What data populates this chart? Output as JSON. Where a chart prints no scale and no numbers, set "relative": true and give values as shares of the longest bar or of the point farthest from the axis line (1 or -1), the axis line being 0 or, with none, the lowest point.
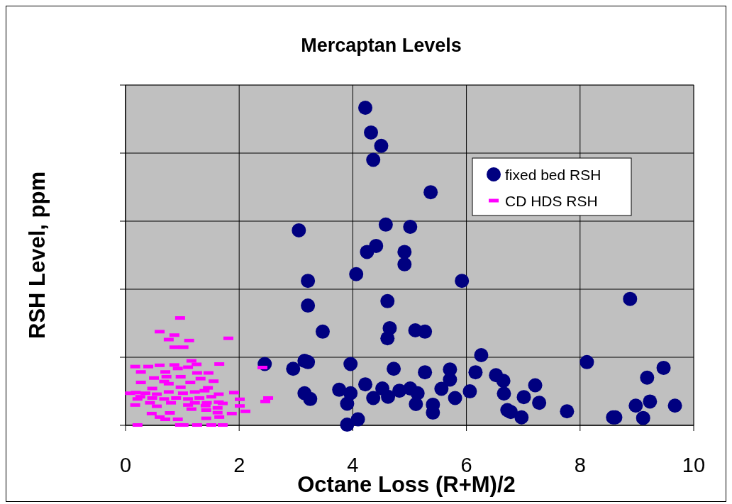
{
  "chart_data": {
    "type": "scatter",
    "title": "Mercaptan Levels",
    "xlabel": "Octane Loss (R+M)/2",
    "ylabel": "RSH Level, ppm",
    "relative": true,
    "xlim": [
      0,
      10
    ],
    "xticks": [
      0,
      2,
      4,
      6,
      8,
      10
    ],
    "grid": true,
    "legend": "top right",
    "series": [
      {
        "name": "fixed bed RSH",
        "color": "#000080",
        "marker": "circle",
        "x": [
          4.22,
          4.32,
          4.5,
          4.36,
          5.37,
          3.05,
          4.58,
          5.01,
          4.25,
          4.41,
          4.91,
          4.91,
          4.06,
          3.21,
          5.92,
          4.61,
          3.21,
          3.47,
          4.65,
          4.61,
          5.1,
          5.27,
          6.26,
          2.45,
          2.95,
          3.15,
          3.21,
          3.96,
          4.72,
          5.27,
          5.71,
          6.16,
          5.71,
          3.15,
          3.25,
          3.76,
          3.96,
          3.9,
          4.22,
          4.36,
          4.52,
          4.62,
          4.82,
          5.01,
          5.14,
          5.11,
          5.41,
          5.41,
          5.56,
          5.8,
          6.06,
          4.09,
          3.9,
          8.88,
          8.12,
          9.47,
          9.18,
          6.52,
          6.65,
          6.66,
          7.21,
          7.01,
          7.28,
          6.72,
          6.78,
          6.97,
          7.77,
          8.58,
          8.62,
          8.98,
          9.23,
          9.11,
          9.67
        ],
        "values": [
          1.0,
          0.922,
          0.88,
          0.836,
          0.734,
          0.614,
          0.632,
          0.625,
          0.546,
          0.565,
          0.546,
          0.507,
          0.476,
          0.455,
          0.455,
          0.391,
          0.377,
          0.295,
          0.306,
          0.274,
          0.299,
          0.295,
          0.221,
          0.193,
          0.178,
          0.203,
          0.199,
          0.193,
          0.178,
          0.167,
          0.176,
          0.167,
          0.144,
          0.101,
          0.083,
          0.112,
          0.101,
          0.068,
          0.129,
          0.086,
          0.116,
          0.09,
          0.109,
          0.116,
          0.101,
          0.067,
          0.065,
          0.04,
          0.115,
          0.086,
          0.107,
          0.019,
          0.002,
          0.398,
          0.199,
          0.181,
          0.15,
          0.158,
          0.14,
          0.1,
          0.126,
          0.089,
          0.071,
          0.048,
          0.042,
          0.025,
          0.044,
          0.025,
          0.025,
          0.062,
          0.075,
          0.023,
          0.062
        ]
      },
      {
        "name": "CD HDS RSH",
        "color": "#ff00ff",
        "marker": "square",
        "x": [
          0.96,
          0.6,
          0.86,
          0.76,
          1.12,
          1.81,
          0.86,
          1.02,
          1.16,
          1.25,
          1.65,
          0.17,
          0.4,
          0.6,
          0.86,
          0.27,
          0.7,
          0.92,
          1.1,
          1.26,
          1.46,
          0.5,
          0.72,
          0.97,
          1.32,
          1.55,
          0.27,
          0.68,
          1.14,
          0.76,
          1.45,
          0.47,
          0.97,
          0.08,
          0.18,
          0.35,
          0.55,
          0.76,
          1.01,
          1.22,
          1.39,
          1.64,
          1.91,
          0.26,
          0.47,
          0.68,
          0.89,
          1.1,
          1.3,
          1.51,
          0.21,
          2.01,
          0.43,
          0.8,
          1.22,
          1.43,
          1.64,
          1.71,
          0.17,
          0.55,
          1.1,
          1.41,
          2.01,
          1.62,
          1.16,
          1.42,
          2.11,
          1.62,
          0.46,
          0.78,
          1.87,
          0.6,
          0.7,
          0.92,
          1.42,
          1.65,
          0.21,
          0.96,
          1.02,
          1.26,
          1.51,
          1.71,
          2.41,
          2.51,
          2.46
        ],
        "values": [
          0.338,
          0.295,
          0.284,
          0.27,
          0.267,
          0.274,
          0.246,
          0.246,
          0.203,
          0.192,
          0.193,
          0.185,
          0.185,
          0.189,
          0.19,
          0.168,
          0.168,
          0.179,
          0.183,
          0.165,
          0.165,
          0.149,
          0.153,
          0.153,
          0.147,
          0.139,
          0.135,
          0.138,
          0.135,
          0.131,
          0.118,
          0.116,
          0.12,
          0.101,
          0.103,
          0.101,
          0.098,
          0.105,
          0.101,
          0.105,
          0.109,
          0.098,
          0.103,
          0.09,
          0.086,
          0.083,
          0.086,
          0.083,
          0.086,
          0.09,
          0.083,
          0.082,
          0.071,
          0.071,
          0.071,
          0.071,
          0.073,
          0.069,
          0.064,
          0.06,
          0.064,
          0.062,
          0.061,
          0.055,
          0.051,
          0.048,
          0.044,
          0.04,
          0.037,
          0.039,
          0.037,
          0.026,
          0.019,
          0.019,
          0.022,
          0.026,
          0.001,
          0.001,
          0.001,
          0.001,
          0.001,
          0.001,
          0.182,
          0.086,
          0.075
        ]
      }
    ]
  }
}
